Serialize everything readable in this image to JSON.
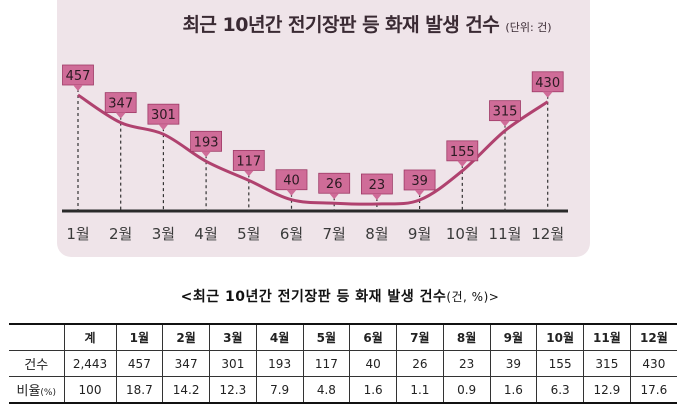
{
  "chart_data": [
    {
      "type": "line",
      "title": "최근 10년간 전기장판 등 화재 발생 건수",
      "unit": "(단위: 건)",
      "categories": [
        "1월",
        "2월",
        "3월",
        "4월",
        "5월",
        "6월",
        "7월",
        "8월",
        "9월",
        "10월",
        "11월",
        "12월"
      ],
      "values": [
        457,
        347,
        301,
        193,
        117,
        40,
        26,
        23,
        39,
        155,
        315,
        430
      ],
      "ylim": [
        0,
        500
      ],
      "grid": false,
      "colors": {
        "line": "#b0426f",
        "label_box": "#cf6c98",
        "guide": "#333333",
        "panel": "#efe4e9"
      }
    },
    {
      "type": "table",
      "title": "<최근 10년간 전기장판 등 화재 발생 건수",
      "unit": "(건, %)>",
      "header": [
        "",
        "계",
        "1월",
        "2월",
        "3월",
        "4월",
        "5월",
        "6월",
        "7월",
        "8월",
        "9월",
        "10월",
        "11월",
        "12월"
      ],
      "rows": [
        {
          "label": "건수",
          "unit": "",
          "values": [
            "2,443",
            "457",
            "347",
            "301",
            "193",
            "117",
            "40",
            "26",
            "23",
            "39",
            "155",
            "315",
            "430"
          ]
        },
        {
          "label": "비율",
          "unit": "(%)",
          "values": [
            "100",
            "18.7",
            "14.2",
            "12.3",
            "7.9",
            "4.8",
            "1.6",
            "1.1",
            "0.9",
            "1.6",
            "6.3",
            "12.9",
            "17.6"
          ]
        }
      ]
    }
  ]
}
